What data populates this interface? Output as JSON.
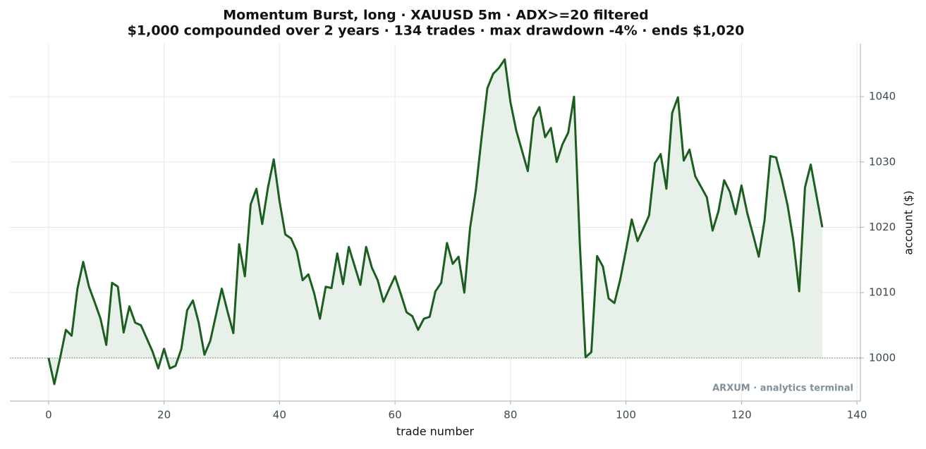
{
  "chart_data": {
    "type": "line",
    "title": "Momentum Burst, long · XAUUSD 5m · ADX>=20 filtered",
    "subtitle": "$1,000 compounded over 2 years · 134 trades · max drawdown -4% · ends $1,020",
    "x_label": "trade number",
    "y_label": "account ($)",
    "annotation": "ARXUM · analytics terminal",
    "color": "#1b5e20",
    "fill_color": "#e8f0ea",
    "baseline": 1000,
    "grid": true,
    "y_axis_side": "right",
    "x": [
      0,
      1,
      2,
      3,
      4,
      5,
      6,
      7,
      8,
      9,
      10,
      11,
      12,
      13,
      14,
      15,
      16,
      17,
      18,
      19,
      20,
      21,
      22,
      23,
      24,
      25,
      26,
      27,
      28,
      29,
      30,
      31,
      32,
      33,
      34,
      35,
      36,
      37,
      38,
      39,
      40,
      41,
      42,
      43,
      44,
      45,
      46,
      47,
      48,
      49,
      50,
      51,
      52,
      53,
      54,
      55,
      56,
      57,
      58,
      59,
      60,
      61,
      62,
      63,
      64,
      65,
      66,
      67,
      68,
      69,
      70,
      71,
      72,
      73,
      74,
      75,
      76,
      77,
      78,
      79,
      80,
      81,
      82,
      83,
      84,
      85,
      86,
      87,
      88,
      89,
      90,
      91,
      92,
      93,
      94,
      95,
      96,
      97,
      98,
      99,
      100,
      101,
      102,
      103,
      104,
      105,
      106,
      107,
      108,
      109,
      110,
      111,
      112,
      113,
      114,
      115,
      116,
      117,
      118,
      119,
      120,
      121,
      122,
      123,
      124,
      125,
      126,
      127,
      128,
      129,
      130,
      131,
      132,
      133,
      134
    ],
    "values": [
      1000,
      996,
      1000,
      1004.3,
      1003.4,
      1010.6,
      1014.7,
      1010.9,
      1008.5,
      1006,
      1002,
      1011.5,
      1010.9,
      1003.9,
      1007.9,
      1005.4,
      1005,
      1003,
      1001,
      998.4,
      1001.4,
      998.4,
      998.8,
      1001.4,
      1007.3,
      1008.8,
      1005.4,
      1000.5,
      1002.6,
      1006.6,
      1010.6,
      1007.1,
      1003.8,
      1017.4,
      1012.5,
      1023.5,
      1025.9,
      1020.5,
      1026.1,
      1030.4,
      1024,
      1018.9,
      1018.3,
      1016.3,
      1011.9,
      1012.8,
      1009.9,
      1006,
      1010.9,
      1010.7,
      1016,
      1011.3,
      1017,
      1014.1,
      1011.2,
      1017,
      1013.8,
      1011.9,
      1008.6,
      1010.6,
      1012.5,
      1009.8,
      1007,
      1006.4,
      1004.3,
      1006,
      1006.3,
      1010.2,
      1011.5,
      1017.6,
      1014.4,
      1015.5,
      1010,
      1019.9,
      1025.7,
      1033.8,
      1041.3,
      1043.5,
      1044.4,
      1045.7,
      1039.1,
      1034.8,
      1031.7,
      1028.6,
      1036.7,
      1038.4,
      1033.8,
      1035.2,
      1030,
      1032.7,
      1034.5,
      1040,
      1017.6,
      1000.1,
      1000.9,
      1015.6,
      1014,
      1009.1,
      1008.4,
      1012,
      1016.5,
      1021.2,
      1017.9,
      1019.8,
      1021.8,
      1029.8,
      1031.2,
      1025.9,
      1037.5,
      1039.9,
      1030.2,
      1031.9,
      1027.8,
      1026.2,
      1024.6,
      1019.5,
      1022.4,
      1027.2,
      1025.4,
      1022,
      1026.4,
      1022.2,
      1018.9,
      1015.5,
      1021.1,
      1030.9,
      1030.7,
      1027.3,
      1023.3,
      1017.9,
      1010.2,
      1026.1,
      1029.6,
      1024.8,
      1020
    ],
    "xlim": [
      -6.7,
      140.6
    ],
    "ylim": [
      993.4,
      1048.1
    ],
    "xticks": [
      0,
      20,
      40,
      60,
      80,
      100,
      120,
      140
    ],
    "yticks": [
      1000,
      1010,
      1020,
      1030,
      1040
    ]
  }
}
